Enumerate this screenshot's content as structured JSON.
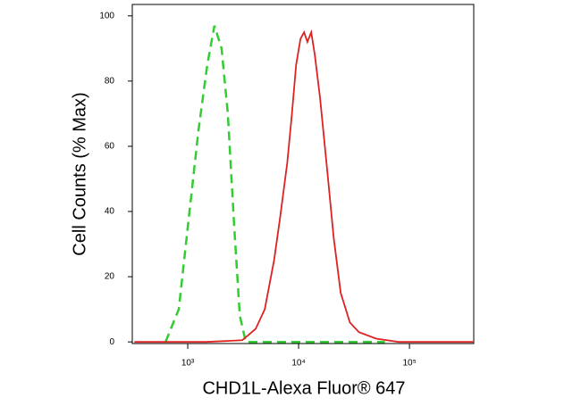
{
  "chart_data": {
    "type": "line",
    "x_label": "CHD1L-Alexa Fluor® 647",
    "y_label": "Cell Counts (% Max)",
    "xscale": "log",
    "xlim": [
      316,
      380000
    ],
    "ylim": [
      -0.5,
      103.5
    ],
    "xticks": [
      {
        "value": 1000,
        "label": "10³"
      },
      {
        "value": 10000,
        "label": "10⁴"
      },
      {
        "value": 100000,
        "label": "10⁵"
      }
    ],
    "yticks": [
      0,
      20,
      40,
      60,
      80,
      100
    ],
    "series": [
      {
        "color": "#33cc33",
        "dashed": true,
        "x": [
          630,
          830,
          1000,
          1250,
          1500,
          1740,
          2020,
          2300,
          2630,
          2950,
          3340,
          10000,
          60000
        ],
        "values": [
          0,
          10,
          35,
          65,
          85,
          97,
          90,
          70,
          35,
          8,
          0,
          0,
          0
        ]
      },
      {
        "color": "#dd2222",
        "dashed": false,
        "x": [
          330,
          1470,
          3100,
          4100,
          4950,
          6000,
          6800,
          7900,
          8700,
          9500,
          10400,
          11200,
          12000,
          13000,
          14000,
          15600,
          18200,
          20700,
          24000,
          29000,
          35000,
          50000,
          80000,
          380000
        ],
        "values": [
          0,
          0,
          0.5,
          4,
          10,
          25,
          38,
          55,
          70,
          85,
          93,
          95,
          92,
          95,
          88,
          75,
          52,
          32,
          15,
          6,
          3,
          1,
          0,
          0
        ]
      }
    ]
  }
}
